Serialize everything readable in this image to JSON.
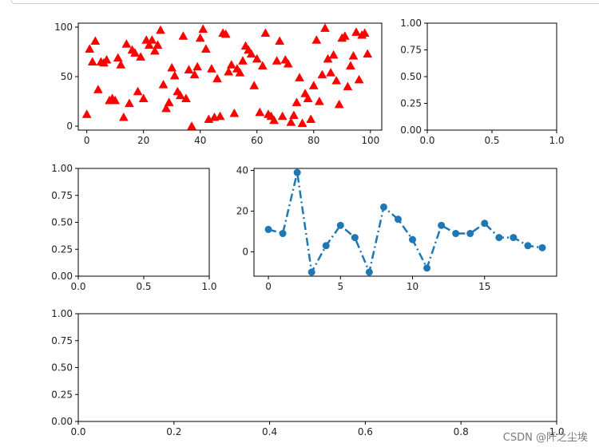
{
  "watermark": "CSDN @阡之尘埃",
  "chart_data": [
    {
      "type": "scatter",
      "marker": "triangle",
      "color": "#ff0000",
      "xlim": [
        -3,
        104
      ],
      "ylim": [
        -4,
        104
      ],
      "xticks": [
        0,
        20,
        40,
        60,
        80,
        100
      ],
      "yticks": [
        0,
        50,
        100
      ],
      "x": [
        0,
        1,
        2,
        3,
        4,
        5,
        6,
        7,
        8,
        9,
        10,
        11,
        12,
        13,
        14,
        15,
        16,
        17,
        18,
        19,
        20,
        21,
        22,
        23,
        24,
        25,
        26,
        27,
        28,
        29,
        30,
        31,
        32,
        33,
        34,
        35,
        36,
        37,
        38,
        39,
        40,
        41,
        42,
        43,
        44,
        45,
        46,
        47,
        48,
        49,
        50,
        51,
        52,
        53,
        54,
        55,
        56,
        57,
        58,
        59,
        60,
        61,
        62,
        63,
        64,
        65,
        66,
        67,
        68,
        69,
        70,
        71,
        72,
        73,
        74,
        75,
        76,
        77,
        78,
        79,
        80,
        81,
        82,
        83,
        84,
        85,
        86,
        87,
        88,
        89,
        90,
        91,
        92,
        93,
        94,
        95,
        96,
        97,
        98,
        99
      ],
      "y": [
        12,
        78,
        65,
        86,
        37,
        65,
        64,
        67,
        26,
        28,
        26,
        69,
        62,
        9,
        83,
        23,
        77,
        74,
        35,
        70,
        28,
        87,
        82,
        87,
        76,
        82,
        97,
        42,
        18,
        24,
        59,
        51,
        35,
        31,
        91,
        28,
        57,
        0,
        52,
        60,
        89,
        98,
        78,
        7,
        58,
        9,
        48,
        10,
        94,
        93,
        55,
        62,
        13,
        58,
        54,
        66,
        81,
        77,
        73,
        41,
        68,
        14,
        61,
        94,
        12,
        10,
        6,
        66,
        86,
        10,
        67,
        63,
        4,
        11,
        24,
        49,
        3,
        33,
        28,
        7,
        41,
        87,
        25,
        52,
        99,
        68,
        54,
        72,
        46,
        22,
        89,
        91,
        40,
        61,
        71,
        95,
        47,
        92,
        94,
        73
      ]
    },
    {
      "type": "empty",
      "xlim": [
        0,
        1
      ],
      "ylim": [
        0,
        1
      ],
      "xticks": [
        "0.0",
        "0.5",
        "1.0"
      ],
      "yticks": [
        "0.00",
        "0.25",
        "0.50",
        "0.75",
        "1.00"
      ]
    },
    {
      "type": "empty",
      "xlim": [
        0,
        1
      ],
      "ylim": [
        0,
        1
      ],
      "xticks": [
        "0.0",
        "0.5",
        "1.0"
      ],
      "yticks": [
        "0.00",
        "0.25",
        "0.50",
        "0.75",
        "1.00"
      ]
    },
    {
      "type": "line",
      "linestyle": "dashdot",
      "marker": "circle",
      "color": "#1f77b4",
      "xlim": [
        -1,
        20
      ],
      "ylim": [
        -12,
        41
      ],
      "xticks": [
        0,
        5,
        10,
        15
      ],
      "yticks": [
        0,
        20,
        40
      ],
      "x": [
        0,
        1,
        2,
        3,
        4,
        5,
        6,
        7,
        8,
        9,
        10,
        11,
        12,
        13,
        14,
        15,
        16,
        17,
        18,
        19
      ],
      "y": [
        11,
        9,
        39,
        -10,
        3,
        13,
        7,
        -10,
        22,
        16,
        6,
        -8,
        13,
        9,
        9,
        14,
        7,
        7,
        3,
        2
      ]
    },
    {
      "type": "empty",
      "xlim": [
        0,
        1
      ],
      "ylim": [
        0,
        1
      ],
      "xticks": [
        "0.0",
        "0.2",
        "0.4",
        "0.6",
        "0.8",
        "1.0"
      ],
      "yticks": [
        "0.00",
        "0.25",
        "0.50",
        "0.75",
        "1.00"
      ]
    }
  ]
}
